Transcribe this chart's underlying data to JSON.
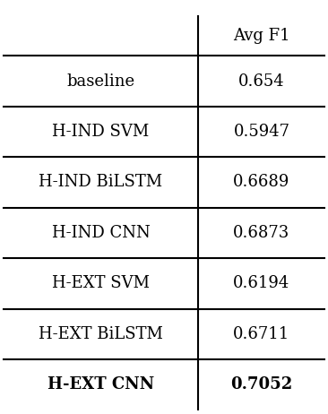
{
  "rows": [
    {
      "label": "",
      "value": "Avg F1",
      "bold_label": false,
      "bold_value": false
    },
    {
      "label": "baseline",
      "value": "0.654",
      "bold_label": false,
      "bold_value": false
    },
    {
      "label": "H-IND SVM",
      "value": "0.5947",
      "bold_label": false,
      "bold_value": false
    },
    {
      "label": "H-IND BiLSTM",
      "value": "0.6689",
      "bold_label": false,
      "bold_value": false
    },
    {
      "label": "H-IND CNN",
      "value": "0.6873",
      "bold_label": false,
      "bold_value": false
    },
    {
      "label": "H-EXT SVM",
      "value": "0.6194",
      "bold_label": false,
      "bold_value": false
    },
    {
      "label": "H-EXT BiLSTM",
      "value": "0.6711",
      "bold_label": false,
      "bold_value": false
    },
    {
      "label": "H-EXT CNN",
      "value": "0.7052",
      "bold_label": true,
      "bold_value": true
    }
  ],
  "col_split": 0.605,
  "background_color": "#ffffff",
  "text_color": "#000000",
  "line_color": "#000000",
  "font_size": 13.0,
  "figwidth": 3.66,
  "figheight": 4.62,
  "dpi": 100
}
